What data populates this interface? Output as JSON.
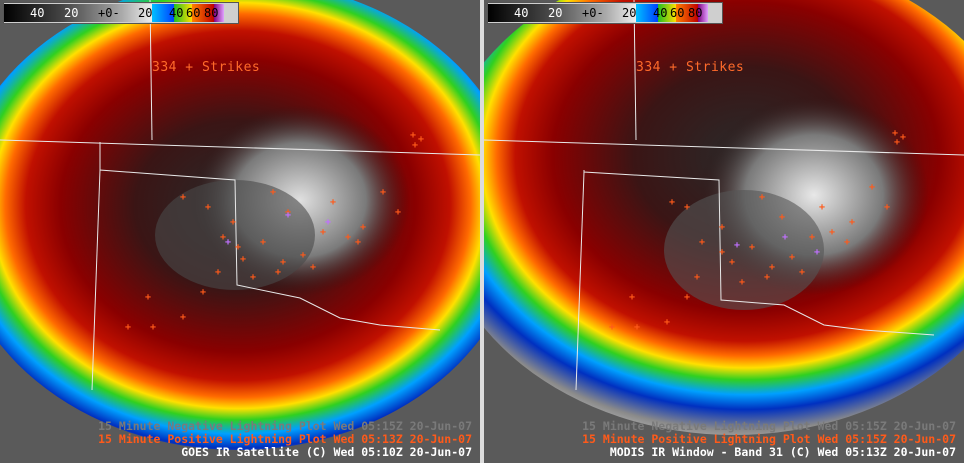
{
  "left_panel": {
    "colorbar_labels": [
      "40",
      "20",
      "+0-",
      "20",
      "40",
      "60",
      "80"
    ],
    "strike_count": "334 + Strikes",
    "captions": {
      "negative_lightning": "15 Minute Negative Lightning Plot  Wed 05:15Z 20-Jun-07",
      "positive_lightning": "15 Minute Positive Lightning Plot  Wed 05:13Z 20-Jun-07",
      "product": "GOES IR Satellite (C)  Wed 05:10Z 20-Jun-07"
    }
  },
  "right_panel": {
    "colorbar_labels": [
      "40",
      "20",
      "+0-",
      "20",
      "40",
      "60",
      "80"
    ],
    "strike_count": "334 + Strikes",
    "captions": {
      "negative_lightning": "15 Minute Negative Lightning Plot  Wed 05:15Z 20-Jun-07",
      "positive_lightning": "15 Minute Positive Lightning Plot  Wed 05:15Z 20-Jun-07",
      "product": "MODIS IR Window - Band 31 (C)  Wed 05:13Z 20-Jun-07"
    }
  },
  "colors": {
    "lightning_positive": "#ff5a1a",
    "lightning_negative": "#c070ff",
    "state_borders": "#e8e8e8"
  }
}
